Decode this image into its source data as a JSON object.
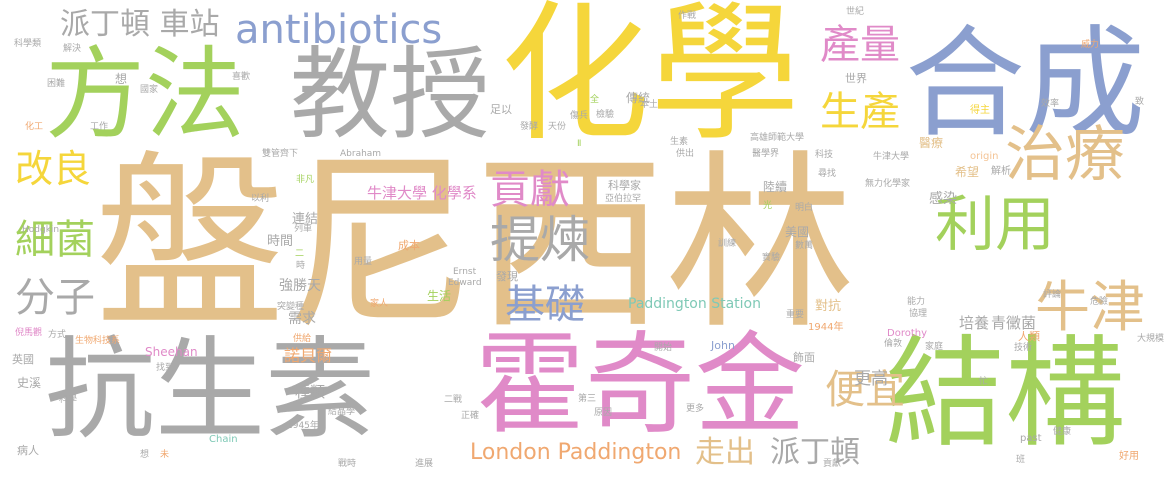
{
  "colors": {
    "tan": "#e3c08a",
    "yellow": "#f5d63b",
    "grey": "#a9a9a9",
    "green": "#a3d15c",
    "blue": "#8b9fcf",
    "pink": "#e08ac8",
    "orange": "#f0a870",
    "teal": "#7fc9b6",
    "light_green": "#bfe07a",
    "light_pink": "#f2a2c6",
    "light_orange": "#f4c495"
  },
  "words": [
    {
      "text": "盤尼西林",
      "color": "tan"
    },
    {
      "text": "化學",
      "color": "yellow"
    },
    {
      "text": "抗生素",
      "color": "grey"
    },
    {
      "text": "教授",
      "color": "grey"
    },
    {
      "text": "方法",
      "color": "green"
    },
    {
      "text": "合成",
      "color": "blue"
    },
    {
      "text": "霍奇金",
      "color": "pink"
    },
    {
      "text": "結構",
      "color": "green"
    },
    {
      "text": "antibiotics",
      "color": "blue"
    },
    {
      "text": "利用",
      "color": "green"
    },
    {
      "text": "治療",
      "color": "tan"
    },
    {
      "text": "牛津",
      "color": "tan"
    },
    {
      "text": "產量",
      "color": "pink"
    },
    {
      "text": "生產",
      "color": "yellow"
    },
    {
      "text": "提煉",
      "color": "grey"
    },
    {
      "text": "貢獻",
      "color": "pink"
    },
    {
      "text": "基礎",
      "color": "blue"
    },
    {
      "text": "改良",
      "color": "yellow"
    },
    {
      "text": "細菌",
      "color": "green"
    },
    {
      "text": "分子",
      "color": "grey"
    },
    {
      "text": "便宜",
      "color": "tan"
    },
    {
      "text": "走出",
      "color": "tan"
    },
    {
      "text": "派丁頓",
      "color": "grey"
    },
    {
      "text": "派丁頓 車站",
      "color": "grey"
    },
    {
      "text": "London Paddington",
      "color": "orange"
    },
    {
      "text": "牛津大學 化學系",
      "color": "pink"
    },
    {
      "text": "Paddington Station",
      "color": "teal"
    },
    {
      "text": "諾貝爾",
      "color": "orange"
    },
    {
      "text": "更高",
      "color": "grey"
    },
    {
      "text": "種類",
      "color": "grey"
    },
    {
      "text": "培養",
      "color": "grey"
    },
    {
      "text": "青黴菌",
      "color": "grey"
    },
    {
      "text": "感染",
      "color": "grey"
    },
    {
      "text": "需求",
      "color": "grey"
    },
    {
      "text": "強勝天",
      "color": "grey"
    },
    {
      "text": "時間",
      "color": "grey"
    },
    {
      "text": "連結",
      "color": "grey"
    },
    {
      "text": "成本",
      "color": "orange"
    },
    {
      "text": "生活",
      "color": "green"
    },
    {
      "text": "發現",
      "color": "grey"
    },
    {
      "text": "對抗",
      "color": "tan"
    },
    {
      "text": "美國",
      "color": "grey"
    },
    {
      "text": "陸續",
      "color": "grey"
    },
    {
      "text": "科學家",
      "color": "grey"
    },
    {
      "text": "世界",
      "color": "grey"
    },
    {
      "text": "傳統",
      "color": "grey"
    },
    {
      "text": "足以",
      "color": "grey"
    },
    {
      "text": "醫療",
      "color": "tan"
    },
    {
      "text": "希望",
      "color": "tan"
    },
    {
      "text": "英國",
      "color": "grey"
    },
    {
      "text": "史溪",
      "color": "grey"
    },
    {
      "text": "病人",
      "color": "grey"
    },
    {
      "text": "人類",
      "color": "orange"
    },
    {
      "text": "Sheehan",
      "color": "pink"
    },
    {
      "text": "John",
      "color": "blue"
    },
    {
      "text": "Hodgkin",
      "color": "grey"
    },
    {
      "text": "Abraham",
      "color": "grey"
    },
    {
      "text": "Dorothy",
      "color": "pink"
    },
    {
      "text": "Ernst",
      "color": "grey"
    },
    {
      "text": "Edward",
      "color": "grey"
    },
    {
      "text": "Chain",
      "color": "teal"
    },
    {
      "text": "origin",
      "color": "light_orange"
    },
    {
      "text": "past",
      "color": "grey"
    },
    {
      "text": "1944年",
      "color": "orange"
    },
    {
      "text": "1945年",
      "color": "grey"
    },
    {
      "text": "解析",
      "color": "grey"
    },
    {
      "text": "得主",
      "color": "yellow"
    },
    {
      "text": "好用",
      "color": "orange"
    },
    {
      "text": "飾面",
      "color": "grey"
    },
    {
      "text": "想",
      "color": "grey"
    },
    {
      "text": "工作",
      "color": "grey"
    },
    {
      "text": "化工",
      "color": "orange"
    },
    {
      "text": "天份",
      "color": "grey"
    },
    {
      "text": "發酵",
      "color": "grey"
    },
    {
      "text": "生素",
      "color": "grey"
    },
    {
      "text": "科技",
      "color": "grey"
    },
    {
      "text": "作戰",
      "color": "grey"
    },
    {
      "text": "國家",
      "color": "grey"
    },
    {
      "text": "喜歡",
      "color": "grey"
    },
    {
      "text": "威力",
      "color": "orange"
    },
    {
      "text": "效率",
      "color": "grey"
    },
    {
      "text": "家庭",
      "color": "grey"
    },
    {
      "text": "重要",
      "color": "grey"
    },
    {
      "text": "危險",
      "color": "grey"
    },
    {
      "text": "家人",
      "color": "orange"
    },
    {
      "text": "供給",
      "color": "orange"
    },
    {
      "text": "方式",
      "color": "grey"
    },
    {
      "text": "生物科技系",
      "color": "orange"
    },
    {
      "text": "倪馬觀",
      "color": "pink"
    },
    {
      "text": "找到",
      "color": "grey"
    },
    {
      "text": "科學",
      "color": "grey"
    },
    {
      "text": "解決",
      "color": "grey"
    },
    {
      "text": "科學類",
      "color": "grey"
    },
    {
      "text": "困難",
      "color": "grey"
    },
    {
      "text": "世紀",
      "color": "grey"
    },
    {
      "text": "以利",
      "color": "grey"
    },
    {
      "text": "非凡",
      "color": "green"
    },
    {
      "text": "列車",
      "color": "grey"
    },
    {
      "text": "用量",
      "color": "grey"
    },
    {
      "text": "醫學界",
      "color": "grey"
    },
    {
      "text": "供出",
      "color": "grey"
    },
    {
      "text": "突變種",
      "color": "grey"
    },
    {
      "text": "健康",
      "color": "grey"
    },
    {
      "text": "倫敦",
      "color": "grey"
    },
    {
      "text": "技術",
      "color": "grey"
    },
    {
      "text": "大規模",
      "color": "grey"
    },
    {
      "text": "評論",
      "color": "grey"
    },
    {
      "text": "第三",
      "color": "grey"
    },
    {
      "text": "二戰",
      "color": "grey"
    },
    {
      "text": "正確",
      "color": "grey"
    },
    {
      "text": "原因",
      "color": "grey"
    },
    {
      "text": "更多",
      "color": "grey"
    },
    {
      "text": "開始",
      "color": "grey"
    },
    {
      "text": "結晶學",
      "color": "grey"
    },
    {
      "text": "進展",
      "color": "grey"
    },
    {
      "text": "戰時",
      "color": "grey"
    },
    {
      "text": "貢獻",
      "color": "grey"
    },
    {
      "text": "班",
      "color": "grey"
    },
    {
      "text": "牛津大學",
      "color": "grey"
    },
    {
      "text": "高雄師範大學",
      "color": "grey"
    },
    {
      "text": "無力化學家",
      "color": "grey"
    },
    {
      "text": "亞伯拉罕",
      "color": "grey"
    },
    {
      "text": "雙管齊下",
      "color": "grey"
    },
    {
      "text": "明白",
      "color": "grey"
    },
    {
      "text": "訓練",
      "color": "grey"
    },
    {
      "text": "數萬",
      "color": "grey"
    },
    {
      "text": "尋找",
      "color": "grey"
    },
    {
      "text": "能力",
      "color": "grey"
    },
    {
      "text": "協理",
      "color": "grey"
    },
    {
      "text": "實驗",
      "color": "grey"
    },
    {
      "text": "光",
      "color": "green"
    },
    {
      "text": "本土",
      "color": "grey"
    },
    {
      "text": "傷兵",
      "color": "grey"
    },
    {
      "text": "檢驗",
      "color": "grey"
    },
    {
      "text": "時",
      "color": "grey"
    },
    {
      "text": "二",
      "color": "green"
    },
    {
      "text": "Ⅱ",
      "color": "green"
    },
    {
      "text": "未",
      "color": "orange"
    },
    {
      "text": "忙",
      "color": "grey"
    },
    {
      "text": "想",
      "color": "grey"
    },
    {
      "text": "致",
      "color": "grey"
    },
    {
      "text": "全",
      "color": "green"
    }
  ]
}
